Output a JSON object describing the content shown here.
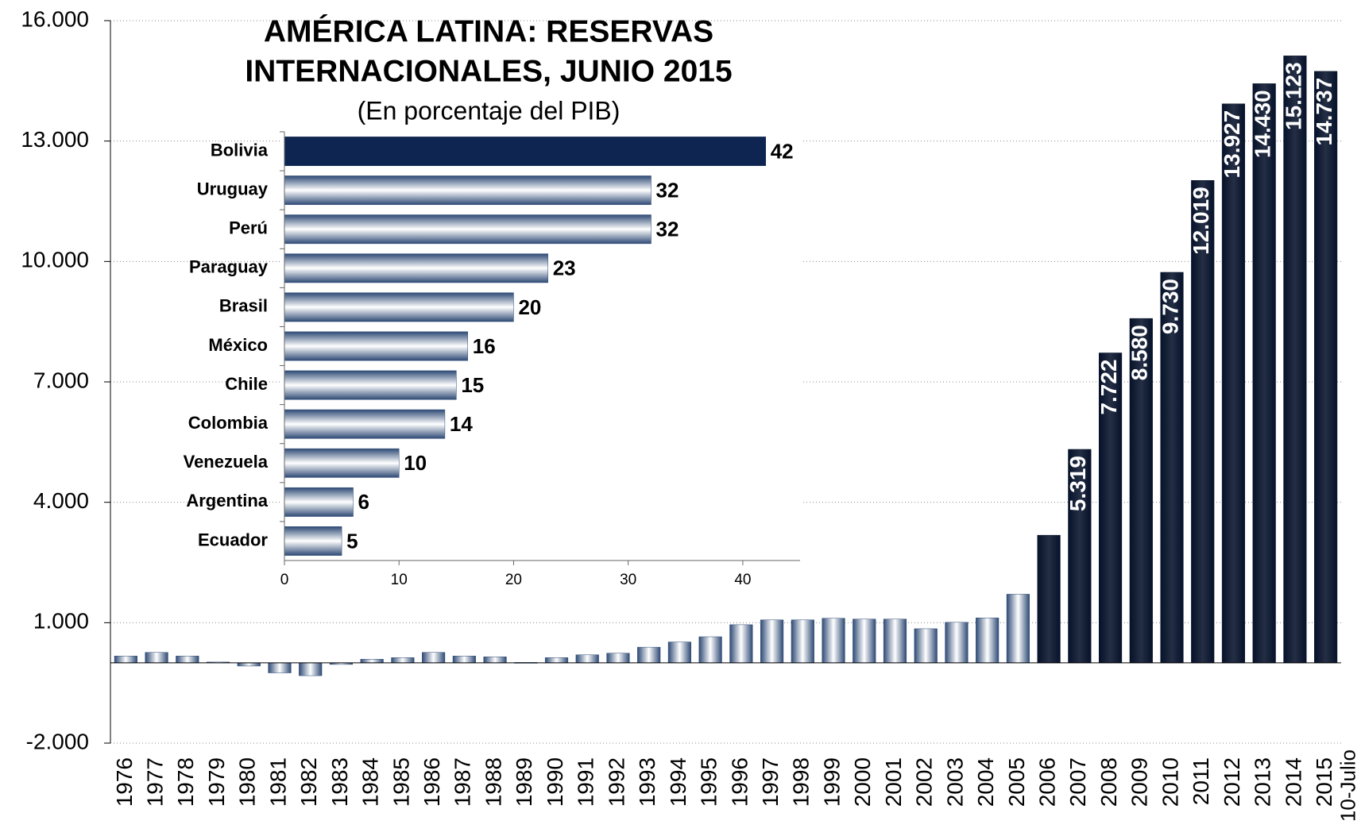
{
  "chart_data": [
    {
      "type": "bar",
      "categories": [
        "1976",
        "1977",
        "1978",
        "1979",
        "1980",
        "1981",
        "1982",
        "1983",
        "1984",
        "1985",
        "1986",
        "1987",
        "1988",
        "1989",
        "1990",
        "1991",
        "1992",
        "1993",
        "1994",
        "1995",
        "1996",
        "1997",
        "1998",
        "1999",
        "2000",
        "2001",
        "2002",
        "2003",
        "2004",
        "2005",
        "2006",
        "2007",
        "2008",
        "2009",
        "2010",
        "2011",
        "2012",
        "2013",
        "2014",
        "2015"
      ],
      "x_note": "10-Julio",
      "values": [
        170,
        260,
        170,
        20,
        -80,
        -250,
        -320,
        -40,
        90,
        130,
        260,
        170,
        150,
        10,
        130,
        200,
        240,
        390,
        520,
        650,
        950,
        1070,
        1070,
        1110,
        1090,
        1090,
        850,
        1010,
        1120,
        1710,
        3180,
        5319,
        7722,
        8580,
        9730,
        12019,
        13927,
        14430,
        15123,
        14737
      ],
      "value_labels": [
        null,
        null,
        null,
        null,
        null,
        null,
        null,
        null,
        null,
        null,
        null,
        null,
        null,
        null,
        null,
        null,
        null,
        null,
        null,
        null,
        null,
        null,
        null,
        null,
        null,
        null,
        null,
        null,
        null,
        null,
        null,
        "5.319",
        "7.722",
        "8.580",
        "9.730",
        "12.019",
        "13.927",
        "14.430",
        "15.123",
        "14.737"
      ],
      "colors": [
        "#2e4a75",
        "#2e4a75",
        "#2e4a75",
        "#2e4a75",
        "#2e4a75",
        "#2e4a75",
        "#2e4a75",
        "#2e4a75",
        "#2e4a75",
        "#2e4a75",
        "#2e4a75",
        "#2e4a75",
        "#2e4a75",
        "#2e4a75",
        "#2e4a75",
        "#2e4a75",
        "#2e4a75",
        "#2e4a75",
        "#2e4a75",
        "#2e4a75",
        "#2e4a75",
        "#2e4a75",
        "#2e4a75",
        "#2e4a75",
        "#2e4a75",
        "#2e4a75",
        "#2e4a75",
        "#2e4a75",
        "#2e4a75",
        "#2e4a75",
        "#06122a",
        "#06122a",
        "#06122a",
        "#06122a",
        "#06122a",
        "#06122a",
        "#06122a",
        "#06122a",
        "#06122a",
        "#06122a"
      ],
      "ylim": [
        -2000,
        16000
      ],
      "yticks": [
        {
          "value": -2000,
          "label": "-2.000"
        },
        {
          "value": 1000,
          "label": "1.000"
        },
        {
          "value": 4000,
          "label": "4.000"
        },
        {
          "value": 7000,
          "label": "7.000"
        },
        {
          "value": 10000,
          "label": "10.000"
        },
        {
          "value": 13000,
          "label": "13.000"
        },
        {
          "value": 16000,
          "label": "16.000"
        }
      ],
      "grid": true
    },
    {
      "type": "hbar",
      "title": [
        "AMÉRICA LATINA: RESERVAS",
        "INTERNACIONALES, JUNIO 2015"
      ],
      "subtitle": "(En porcentaje del PIB)",
      "categories": [
        "Bolivia",
        "Uruguay",
        "Perú",
        "Paraguay",
        "Brasil",
        "México",
        "Chile",
        "Colombia",
        "Venezuela",
        "Argentina",
        "Ecuador"
      ],
      "values": [
        42,
        32,
        32,
        23,
        20,
        16,
        15,
        14,
        10,
        6,
        5
      ],
      "colors": [
        "#0d2550",
        "#2e4a75",
        "#2e4a75",
        "#2e4a75",
        "#2e4a75",
        "#2e4a75",
        "#2e4a75",
        "#2e4a75",
        "#2e4a75",
        "#2e4a75",
        "#2e4a75"
      ],
      "xlim": [
        0,
        45
      ],
      "xticks": [
        0,
        10,
        20,
        30,
        40
      ]
    }
  ]
}
